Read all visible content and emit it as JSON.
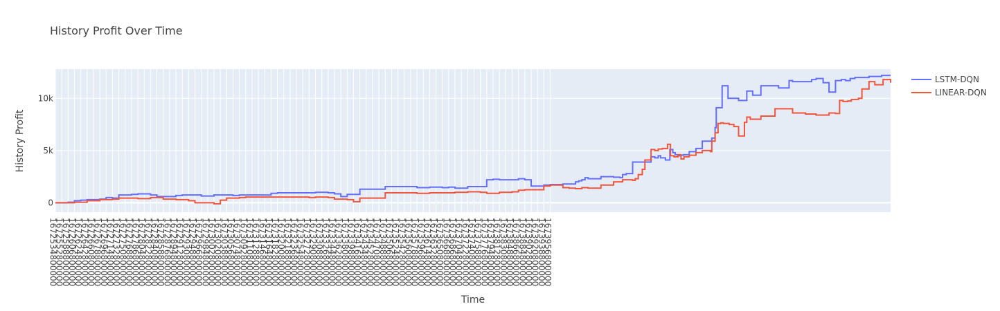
{
  "chart_data": {
    "type": "line",
    "line_shape": "step",
    "title": "History Profit Over Time",
    "xlabel": "Time",
    "ylabel": "History Profit",
    "xlim": [
      1672534800000,
      1673956800000
    ],
    "ylim": [
      -900,
      12800
    ],
    "yticks": [
      {
        "value": 0,
        "label": "0"
      },
      {
        "value": 5000,
        "label": "5k"
      },
      {
        "value": 10000,
        "label": "10k"
      }
    ],
    "xtick_start": 1672534800000,
    "xtick_step": 10800000,
    "xtick_labels": [
      "1672534800000",
      "1672552800000",
      "1672588800000",
      "1672606800000",
      "1672624800000",
      "1672642800000",
      "1672660800000",
      "1672678800000",
      "1672696800000",
      "1672714800000",
      "1672732800000",
      "1672750800000",
      "1672768800000",
      "1672786800000",
      "1672804800000",
      "1672822800000",
      "1672840800000",
      "1672858800000",
      "1672876800000",
      "1672894800000",
      "1672912800000",
      "1672930800000",
      "1672948800000",
      "1672966800000",
      "1672984800000",
      "1673002800000",
      "1673020800000",
      "1673038800000",
      "1673056800000",
      "1673074800000",
      "1673092800000",
      "1673110800000",
      "1673128800000",
      "1673146800000",
      "1673164800000",
      "1673182800000",
      "1673200800000",
      "1673218800000",
      "1673236800000",
      "1673254800000",
      "1673272800000",
      "1673290800000",
      "1673308800000",
      "1673326800000",
      "1673344800000",
      "1673362800000",
      "1673380800000",
      "1673398800000",
      "1673416800000",
      "1673434800000",
      "1673452800000",
      "1673470800000",
      "1673488800000",
      "1673506800000",
      "1673524800000",
      "1673542800000",
      "1673560800000",
      "1673578800000",
      "1673596800000",
      "1673614800000",
      "1673632800000",
      "1673650800000",
      "1673668800000",
      "1673686800000",
      "1673704800000",
      "1673722800000",
      "1673740800000",
      "1673758800000",
      "1673776800000",
      "1673794800000",
      "1673812800000",
      "1673830800000",
      "1673848800000",
      "1673866800000",
      "1673884800000",
      "1673902800000",
      "1673920800000",
      "1673938800000",
      "1673956800000"
    ],
    "grid": true,
    "legend_position": "top-right",
    "series": [
      {
        "name": "LSTM-DQN",
        "color": "#636efa",
        "x": [
          1672534800000,
          1672556400000,
          1672567200000,
          1672578000000,
          1672588800000,
          1672599600000,
          1672610400000,
          1672621200000,
          1672632000000,
          1672642800000,
          1672664400000,
          1672675200000,
          1672696800000,
          1672707600000,
          1672740000000,
          1672750800000,
          1672783200000,
          1672804800000,
          1672837200000,
          1672848000000,
          1672902000000,
          1672912800000,
          1672966800000,
          1672977600000,
          1672999200000,
          1673010000000,
          1673020800000,
          1673031600000,
          1673053200000,
          1673096400000,
          1673150400000,
          1673172000000,
          1673193600000,
          1673204400000,
          1673215200000,
          1673236800000,
          1673269200000,
          1673280000000,
          1673290800000,
          1673323200000,
          1673334000000,
          1673344800000,
          1673366400000,
          1673377200000,
          1673398800000,
          1673409600000,
          1673420400000,
          1673425800000,
          1673431200000,
          1673436600000,
          1673442000000,
          1673463600000,
          1673485200000,
          1673496000000,
          1673500500000,
          1673506800000,
          1673517600000,
          1673549000000,
          1673555400000,
          1673561200000,
          1673565200000,
          1673573400000,
          1673581000000,
          1673586000000,
          1673590000000,
          1673595000000,
          1673598000000,
          1673604000000,
          1673614000000,
          1673625400000,
          1673636200000,
          1673652400000,
          1673658000000,
          1673660000000,
          1673670000000,
          1673680000000,
          1673698000000,
          1673712000000,
          1673722000000,
          1673736000000,
          1673766000000,
          1673784000000,
          1673790000000,
          1673822400000,
          1673830000000,
          1673842000000,
          1673852000000,
          1673863000000,
          1673873000000,
          1673880000000,
          1673888000000,
          1673896000000,
          1673920000000,
          1673941600000,
          1673956800000
        ],
        "y": [
          0,
          50,
          200,
          250,
          300,
          300,
          350,
          500,
          450,
          750,
          800,
          850,
          750,
          600,
          700,
          750,
          650,
          750,
          700,
          750,
          900,
          950,
          950,
          1000,
          950,
          850,
          600,
          800,
          1300,
          1550,
          1450,
          1500,
          1450,
          1500,
          1400,
          1550,
          2200,
          2250,
          2200,
          2300,
          2200,
          1600,
          1700,
          1750,
          1800,
          1800,
          2000,
          2100,
          2200,
          2400,
          2300,
          2500,
          2450,
          2400,
          2700,
          2800,
          3900,
          4400,
          4300,
          4500,
          4300,
          4100,
          5100,
          4800,
          4600,
          4500,
          4550,
          4600,
          4900,
          5200,
          5900,
          6200,
          7200,
          9100,
          11200,
          10000,
          9800,
          10700,
          10300,
          11200,
          11000,
          11700,
          11600,
          11800,
          11900,
          11500,
          10600,
          11700,
          11800,
          11700,
          11900,
          12000,
          12100,
          12200,
          12200
        ]
      },
      {
        "name": "LINEAR-DQN",
        "color": "#ef553b",
        "x": [
          1672534800000,
          1672567200000,
          1672588800000,
          1672610400000,
          1672632000000,
          1672642800000,
          1672675200000,
          1672696800000,
          1672718400000,
          1672740000000,
          1672761600000,
          1672772400000,
          1672804800000,
          1672815600000,
          1672826400000,
          1672848000000,
          1672858800000,
          1672912800000,
          1672966800000,
          1672977600000,
          1672999200000,
          1673010000000,
          1673031600000,
          1673042400000,
          1673053200000,
          1673096400000,
          1673150400000,
          1673172000000,
          1673193600000,
          1673215200000,
          1673236800000,
          1673258400000,
          1673269200000,
          1673290800000,
          1673312400000,
          1673323200000,
          1673334000000,
          1673366400000,
          1673377200000,
          1673398800000,
          1673409600000,
          1673420400000,
          1673431200000,
          1673442000000,
          1673463600000,
          1673485200000,
          1673500500000,
          1673506800000,
          1673517600000,
          1673522000000,
          1673527200000,
          1673534000000,
          1673538500000,
          1673549000000,
          1673555400000,
          1673561200000,
          1673568000000,
          1673577000000,
          1673582000000,
          1673588000000,
          1673595000000,
          1673600000000,
          1673605000000,
          1673614000000,
          1673625400000,
          1673636200000,
          1673650000000,
          1673652400000,
          1673658000000,
          1673663000000,
          1673668000000,
          1673672000000,
          1673682000000,
          1673690000000,
          1673698000000,
          1673708000000,
          1673712000000,
          1673718000000,
          1673736000000,
          1673760000000,
          1673790000000,
          1673812000000,
          1673830000000,
          1673852000000,
          1673863000000,
          1673870000000,
          1673876000000,
          1673884000000,
          1673890000000,
          1673902000000,
          1673908000000,
          1673920000000,
          1673930000000,
          1673944000000,
          1673956800000
        ],
        "y": [
          0,
          50,
          200,
          300,
          350,
          450,
          400,
          500,
          350,
          300,
          200,
          0,
          -100,
          250,
          450,
          500,
          550,
          550,
          500,
          550,
          500,
          350,
          300,
          100,
          450,
          950,
          900,
          950,
          950,
          1000,
          1050,
          1000,
          900,
          1000,
          1050,
          1200,
          1250,
          1600,
          1700,
          1450,
          1400,
          1350,
          1450,
          1400,
          1700,
          2000,
          2200,
          2200,
          2150,
          2300,
          2700,
          3200,
          4100,
          5100,
          5000,
          5150,
          5200,
          5600,
          4500,
          4400,
          4600,
          4200,
          4400,
          4550,
          4800,
          5000,
          4900,
          5900,
          6700,
          7600,
          7650,
          7600,
          7500,
          7300,
          6400,
          7700,
          8200,
          8000,
          8300,
          9000,
          8600,
          8500,
          8400,
          8600,
          8550,
          9800,
          9700,
          9750,
          9900,
          10000,
          10900,
          11600,
          11300,
          11800,
          11500
        ]
      }
    ]
  }
}
